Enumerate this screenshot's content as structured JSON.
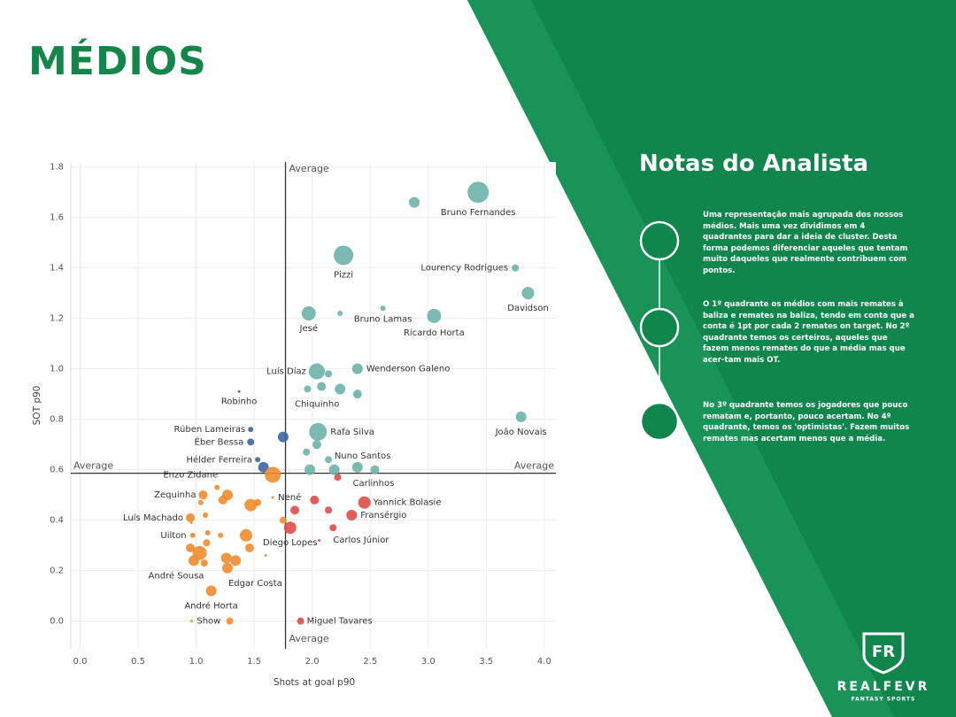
{
  "title": "MÉDIOS",
  "notes": {
    "title": "Notas do Analista",
    "paragraphs": [
      "Uma representação mais agrupada dos nossos médios. Mais uma vez dividimos em 4 quadrantes para dar a ideia de cluster. Desta forma podemos diferenciar aqueles que tentam muito daqueles que realmente contribuem com pontos.",
      "O 1º quadrante os médios com mais remates à baliza e remates na baliza,  tendo em conta que a conta é 1pt por cada 2 remates on target. No 2º quadrante temos os certeiros, aqueles que fazem menos remates do que a média mas que acer-tam mais OT.",
      "No 3º quadrante temos os jogadores que pouco rematam e, portanto, pouco acertam. No 4º quadrante, temos os 'optimistas'. Fazem muitos remates mas acertam menos que a média."
    ]
  },
  "logo": {
    "brand": "REALFEVR",
    "tagline": "FANTASY SPORTS"
  },
  "chart_data": {
    "type": "scatter",
    "x_label": "Shots at goal p90",
    "y_label": "SOT p90",
    "xlim": [
      -0.08,
      4.1
    ],
    "ylim": [
      -0.11,
      1.82
    ],
    "xticks": [
      {
        "value": 0,
        "label": "0.0"
      },
      0.5,
      {
        "value": 1,
        "label": "1.0"
      },
      1.5,
      {
        "value": 2,
        "label": "2.0"
      },
      2.5,
      {
        "value": 3,
        "label": "3.0"
      },
      3.5,
      {
        "value": 4,
        "label": "4.0"
      }
    ],
    "yticks": [
      {
        "value": 0,
        "label": "0.0"
      },
      0.2,
      0.4,
      0.6,
      0.8,
      {
        "value": 1,
        "label": "1.0"
      },
      1.2,
      1.4,
      1.6,
      1.8
    ],
    "grid": true,
    "x_average": {
      "value": 1.77,
      "label": "Average"
    },
    "y_average": {
      "value": 0.586,
      "label": "Average"
    },
    "series": [
      {
        "color": "#6db3a8",
        "x": [
          3.43,
          2.88,
          2.27,
          3.75,
          3.86,
          2.61,
          1.97,
          2.24,
          3.05,
          2.39,
          2.04,
          2.14,
          2.08,
          1.96,
          2.24,
          2.39,
          3.8,
          2.05,
          2.04,
          1.95,
          2.14,
          2.39,
          2.19,
          1.98,
          2.54
        ],
        "y": [
          1.7,
          1.66,
          1.45,
          1.4,
          1.3,
          1.24,
          1.22,
          1.22,
          1.21,
          1.0,
          0.99,
          0.98,
          0.93,
          0.92,
          0.92,
          0.9,
          0.81,
          0.75,
          0.7,
          0.67,
          0.64,
          0.61,
          0.6,
          0.6,
          0.6
        ],
        "size": [
          12,
          6,
          11,
          4,
          7,
          3,
          8,
          3,
          8,
          6,
          9,
          4,
          5,
          4,
          6,
          5,
          6,
          10,
          5,
          4,
          4,
          6,
          6,
          6,
          5
        ],
        "labels": [
          "Bruno Fernandes",
          null,
          "Pizzi",
          "Lourency Rodrigues",
          "Davidson",
          "Bruno Lamas",
          "Jesé",
          null,
          "Ricardo Horta",
          "Wenderson Galeno",
          "Luís Díaz",
          null,
          "Chiquinho",
          null,
          null,
          null,
          "João Novais",
          "Rafa Silva",
          null,
          null,
          null,
          "Nuno Santos",
          null,
          null,
          null
        ]
      },
      {
        "color": "#3b679e",
        "x": [
          1.37,
          1.47,
          1.47,
          1.75,
          1.53,
          1.58
        ],
        "y": [
          0.91,
          0.76,
          0.71,
          0.73,
          0.64,
          0.61
        ],
        "size": [
          1.5,
          3,
          4,
          6,
          3,
          6
        ],
        "labels": [
          "Robinho",
          "Rúben Lameiras",
          "Éber Bessa",
          null,
          "Hélder Ferreira",
          null
        ]
      },
      {
        "color": "#f08c2c",
        "x": [
          1.66,
          1.06,
          1.18,
          1.27,
          1.23,
          1.04,
          1.66,
          1.47,
          1.53,
          0.95,
          1.08,
          1.75,
          0.96,
          0.97,
          1.1,
          1.21,
          1.43,
          1.09,
          0.95,
          1.46,
          1.03,
          0.98,
          1.07,
          1.26,
          1.34,
          1.27,
          1.6,
          1.13,
          0.96,
          1.29
        ],
        "y": [
          0.58,
          0.5,
          0.53,
          0.5,
          0.48,
          0.47,
          0.49,
          0.46,
          0.47,
          0.41,
          0.42,
          0.4,
          0.39,
          0.34,
          0.35,
          0.34,
          0.34,
          0.31,
          0.29,
          0.29,
          0.27,
          0.24,
          0.23,
          0.25,
          0.24,
          0.21,
          0.26,
          0.12,
          0.0,
          0.0
        ],
        "size": [
          9,
          5,
          3,
          6,
          5,
          3,
          1.5,
          7,
          4,
          5,
          3,
          4,
          1.5,
          3,
          3,
          3,
          7,
          4,
          5,
          5,
          8,
          6,
          4,
          6,
          6,
          6,
          1.5,
          6,
          1.5,
          4
        ],
        "labels": [
          "Enzo Zidane",
          "Zequinha",
          null,
          null,
          null,
          null,
          "Nené",
          null,
          null,
          "Luís Machado",
          null,
          null,
          null,
          "Uilton",
          null,
          null,
          null,
          null,
          null,
          null,
          null,
          "André Sousa",
          null,
          null,
          null,
          "Edgar Costa",
          null,
          "André Horta",
          "Show",
          null
        ]
      },
      {
        "color": "#e04a4a",
        "x": [
          2.22,
          2.45,
          2.02,
          1.85,
          2.14,
          2.34,
          2.18,
          1.81,
          2.06,
          1.9
        ],
        "y": [
          0.57,
          0.47,
          0.48,
          0.44,
          0.44,
          0.42,
          0.37,
          0.37,
          0.32,
          0.0
        ],
        "size": [
          4,
          7,
          5,
          5,
          4,
          6,
          4,
          7,
          1.5,
          4
        ],
        "labels": [
          "Carlinhos",
          "Yannick Bolasie",
          null,
          null,
          null,
          "Fransérgio",
          "Carlos Júnior",
          "Diego Lopes",
          null,
          "Miguel Tavares"
        ]
      }
    ]
  }
}
